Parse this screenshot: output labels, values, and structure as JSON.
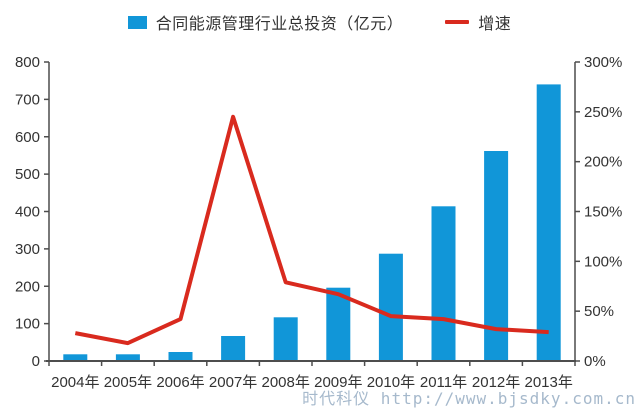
{
  "legend": {
    "bar_label": "合同能源管理行业总投资（亿元）",
    "line_label": "增速"
  },
  "watermark": {
    "text": "时代科仪 http://www.bjsdky.com.cn"
  },
  "colors": {
    "bar": "#1196d8",
    "line": "#d92a1e",
    "axis": "#4d4d4d",
    "text": "#333333",
    "watermark": "#a6b9cc",
    "background": "#ffffff"
  },
  "chart_data": {
    "type": "bar",
    "subtype": "bar+line-dual-axis",
    "title": "",
    "categories": [
      "2004年",
      "2005年",
      "2006年",
      "2007年",
      "2008年",
      "2009年",
      "2010年",
      "2011年",
      "2012年",
      "2013年"
    ],
    "series": [
      {
        "name": "合同能源管理行业总投资（亿元）",
        "type": "bar",
        "axis": "left",
        "values": [
          18,
          18,
          24,
          67,
          117,
          196,
          287,
          414,
          562,
          740
        ]
      },
      {
        "name": "增速",
        "type": "line",
        "axis": "right",
        "values": [
          28,
          18,
          42,
          245,
          79,
          67,
          45,
          42,
          32,
          29
        ],
        "unit": "%"
      }
    ],
    "left_axis": {
      "min": 0,
      "max": 800,
      "step": 100,
      "suffix": ""
    },
    "right_axis": {
      "min": 0,
      "max": 300,
      "step": 50,
      "suffix": "%"
    },
    "xlabel": "",
    "ylabel": "",
    "grid": false,
    "legend_position": "top"
  }
}
